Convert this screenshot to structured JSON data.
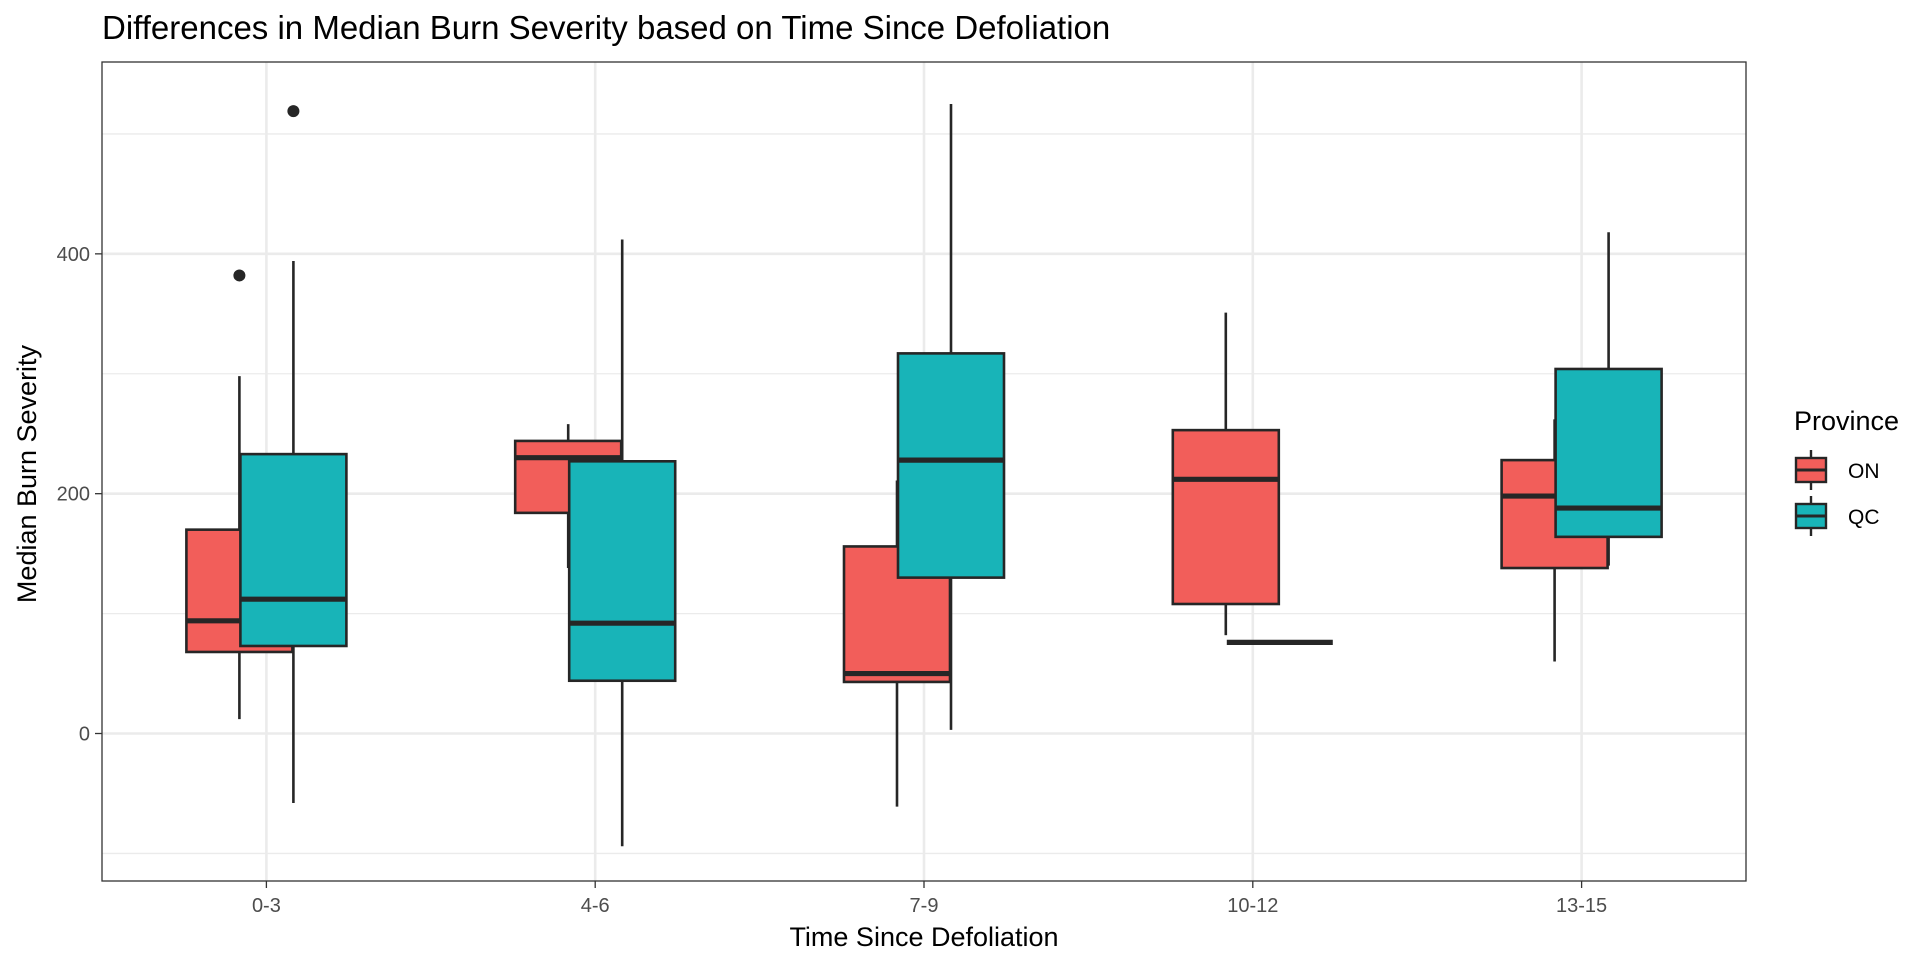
{
  "chart_data": {
    "type": "boxplot",
    "title": "Differences in Median Burn Severity based on Time Since Defoliation",
    "xlabel": "Time Since Defoliation",
    "ylabel": "Median Burn Severity",
    "categories": [
      "0-3",
      "4-6",
      "7-9",
      "10-12",
      "13-15"
    ],
    "ylim": [
      -123,
      560
    ],
    "yticks": [
      0,
      200,
      400
    ],
    "yticks_minor": [
      -100,
      100,
      300,
      500
    ],
    "grid": true,
    "legend": {
      "title": "Province",
      "position": "right",
      "entries": [
        "ON",
        "QC"
      ]
    },
    "colors": {
      "ON": "#f25e5a",
      "QC": "#18b4b8",
      "line": "#262626",
      "grid": "#ebebeb"
    },
    "series": [
      {
        "name": "ON",
        "color": "#f25e5a",
        "boxes": [
          {
            "category": "0-3",
            "whisker_low": 12,
            "q1": 68,
            "median": 94,
            "q3": 170,
            "whisker_high": 298,
            "outliers": [
              382
            ]
          },
          {
            "category": "4-6",
            "whisker_low": 138,
            "q1": 184,
            "median": 230,
            "q3": 244,
            "whisker_high": 258,
            "outliers": []
          },
          {
            "category": "7-9",
            "whisker_low": -61,
            "q1": 43,
            "median": 50,
            "q3": 156,
            "whisker_high": 211,
            "outliers": []
          },
          {
            "category": "10-12",
            "whisker_low": 82,
            "q1": 108,
            "median": 212,
            "q3": 253,
            "whisker_high": 351,
            "outliers": []
          },
          {
            "category": "13-15",
            "whisker_low": 60,
            "q1": 138,
            "median": 198,
            "q3": 228,
            "whisker_high": 262,
            "outliers": []
          }
        ]
      },
      {
        "name": "QC",
        "color": "#18b4b8",
        "boxes": [
          {
            "category": "0-3",
            "whisker_low": -58,
            "q1": 73,
            "median": 112,
            "q3": 233,
            "whisker_high": 394,
            "outliers": [
              519
            ]
          },
          {
            "category": "4-6",
            "whisker_low": -94,
            "q1": 44,
            "median": 92,
            "q3": 227,
            "whisker_high": 412,
            "outliers": []
          },
          {
            "category": "7-9",
            "whisker_low": 3,
            "q1": 130,
            "median": 228,
            "q3": 317,
            "whisker_high": 525,
            "outliers": []
          },
          {
            "category": "10-12",
            "whisker_low": 76,
            "q1": 76,
            "median": 76,
            "q3": 76,
            "whisker_high": 76,
            "outliers": []
          },
          {
            "category": "13-15",
            "whisker_low": 140,
            "q1": 164,
            "median": 188,
            "q3": 304,
            "whisker_high": 418,
            "outliers": []
          }
        ]
      }
    ]
  }
}
